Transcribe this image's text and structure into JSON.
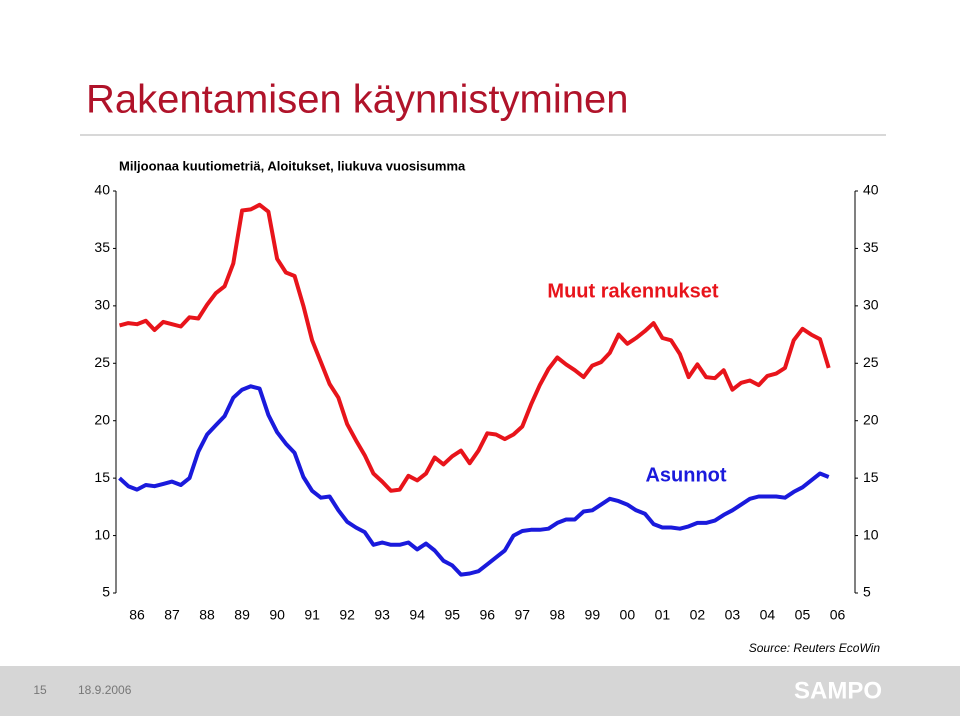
{
  "chart_data": {
    "type": "line",
    "title": "Rakentamisen käynnistyminen",
    "subtitle": "Miljoonaa kuutiometriä, Aloitukset, liukuva vuosisumma",
    "source": "Source: Reuters EcoWin",
    "annotations": [
      "Muut rakennukset",
      "Asunnot"
    ],
    "x": [
      1986,
      1986.25,
      1986.5,
      1986.75,
      1987,
      1987.25,
      1987.5,
      1987.75,
      1988,
      1988.25,
      1988.5,
      1988.75,
      1989,
      1989.25,
      1989.5,
      1989.75,
      1990,
      1990.25,
      1990.5,
      1990.75,
      1991,
      1991.25,
      1991.5,
      1991.75,
      1992,
      1992.25,
      1992.5,
      1992.75,
      1993,
      1993.25,
      1993.5,
      1993.75,
      1994,
      1994.25,
      1994.5,
      1994.75,
      1995,
      1995.25,
      1995.5,
      1995.75,
      1996,
      1996.25,
      1996.5,
      1996.75,
      1997,
      1997.25,
      1997.5,
      1997.75,
      1998,
      1998.25,
      1998.5,
      1998.75,
      1999,
      1999.25,
      1999.5,
      1999.75,
      2000,
      2000.25,
      2000.5,
      2000.75,
      2001,
      2001.25,
      2001.5,
      2001.75,
      2002,
      2002.25,
      2002.5,
      2002.75,
      2003,
      2003.25,
      2003.5,
      2003.75,
      2004,
      2004.25,
      2004.5,
      2004.75,
      2005,
      2005.25,
      2005.5,
      2005.75,
      2006,
      2006.25
    ],
    "series": [
      {
        "name": "Muut rakennukset",
        "color": "#e8141b",
        "values": [
          28.3,
          28.5,
          28.4,
          28.7,
          27.9,
          28.6,
          28.4,
          28.2,
          29.0,
          28.9,
          30.1,
          31.1,
          31.7,
          33.7,
          38.3,
          38.4,
          38.8,
          38.2,
          34.1,
          32.9,
          32.6,
          30.0,
          27.0,
          25.1,
          23.2,
          22.0,
          19.7,
          18.3,
          17.0,
          15.4,
          14.7,
          13.9,
          14.0,
          15.2,
          14.8,
          15.4,
          16.8,
          16.2,
          16.9,
          17.4,
          16.3,
          17.4,
          18.9,
          18.8,
          18.4,
          18.8,
          19.5,
          21.4,
          23.1,
          24.5,
          25.5,
          24.9,
          24.4,
          23.8,
          24.8,
          25.1,
          25.9,
          27.5,
          26.7,
          27.2,
          27.8,
          28.5,
          27.2,
          27.0,
          25.8,
          23.8,
          24.9,
          23.8,
          23.7,
          24.4,
          22.7,
          23.3,
          23.5,
          23.1,
          23.9,
          24.1,
          24.6,
          27.0,
          28.0,
          27.5,
          27.1,
          24.6
        ]
      },
      {
        "name": "Asunnot",
        "color": "#1a1adc",
        "values": [
          15.0,
          14.3,
          14.0,
          14.4,
          14.3,
          14.5,
          14.7,
          14.4,
          15.0,
          17.3,
          18.8,
          19.6,
          20.4,
          22.0,
          22.7,
          23.0,
          22.8,
          20.5,
          19.0,
          18.0,
          17.2,
          15.1,
          13.9,
          13.3,
          13.4,
          12.2,
          11.2,
          10.7,
          10.3,
          9.2,
          9.4,
          9.2,
          9.2,
          9.4,
          8.8,
          9.3,
          8.7,
          7.8,
          7.4,
          6.6,
          6.7,
          6.9,
          7.5,
          8.1,
          8.7,
          10.0,
          10.4,
          10.5,
          10.5,
          10.6,
          11.1,
          11.4,
          11.4,
          12.1,
          12.2,
          12.7,
          13.2,
          13.0,
          12.7,
          12.2,
          11.9,
          11.0,
          10.7,
          10.7,
          10.6,
          10.8,
          11.1,
          11.1,
          11.3,
          11.8,
          12.2,
          12.7,
          13.2,
          13.4,
          13.4,
          13.4,
          13.3,
          13.8,
          14.2,
          14.8,
          15.4,
          15.1
        ]
      }
    ],
    "xlim": [
      1985.9,
      2007
    ],
    "xticks": [
      {
        "value": 1986,
        "label": "86"
      },
      {
        "value": 1987,
        "label": "87"
      },
      {
        "value": 1988,
        "label": "88"
      },
      {
        "value": 1989,
        "label": "89"
      },
      {
        "value": 1990,
        "label": "90"
      },
      {
        "value": 1991,
        "label": "91"
      },
      {
        "value": 1992,
        "label": "92"
      },
      {
        "value": 1993,
        "label": "93"
      },
      {
        "value": 1994,
        "label": "94"
      },
      {
        "value": 1995,
        "label": "95"
      },
      {
        "value": 1996,
        "label": "96"
      },
      {
        "value": 1997,
        "label": "97"
      },
      {
        "value": 1998,
        "label": "98"
      },
      {
        "value": 1999,
        "label": "99"
      },
      {
        "value": 2000,
        "label": "00"
      },
      {
        "value": 2001,
        "label": "01"
      },
      {
        "value": 2002,
        "label": "02"
      },
      {
        "value": 2003,
        "label": "03"
      },
      {
        "value": 2004,
        "label": "04"
      },
      {
        "value": 2005,
        "label": "05"
      },
      {
        "value": 2006,
        "label": "06"
      }
    ],
    "ylim": [
      5,
      40
    ],
    "yticks": [
      5,
      10,
      15,
      20,
      25,
      30,
      35,
      40
    ],
    "y2lim": [
      5,
      40
    ],
    "y2ticks": [
      5,
      10,
      15,
      20,
      25,
      30,
      35,
      40
    ]
  },
  "slide": {
    "page": "15",
    "date": "18.9.2006",
    "logo": "SAMPO"
  }
}
